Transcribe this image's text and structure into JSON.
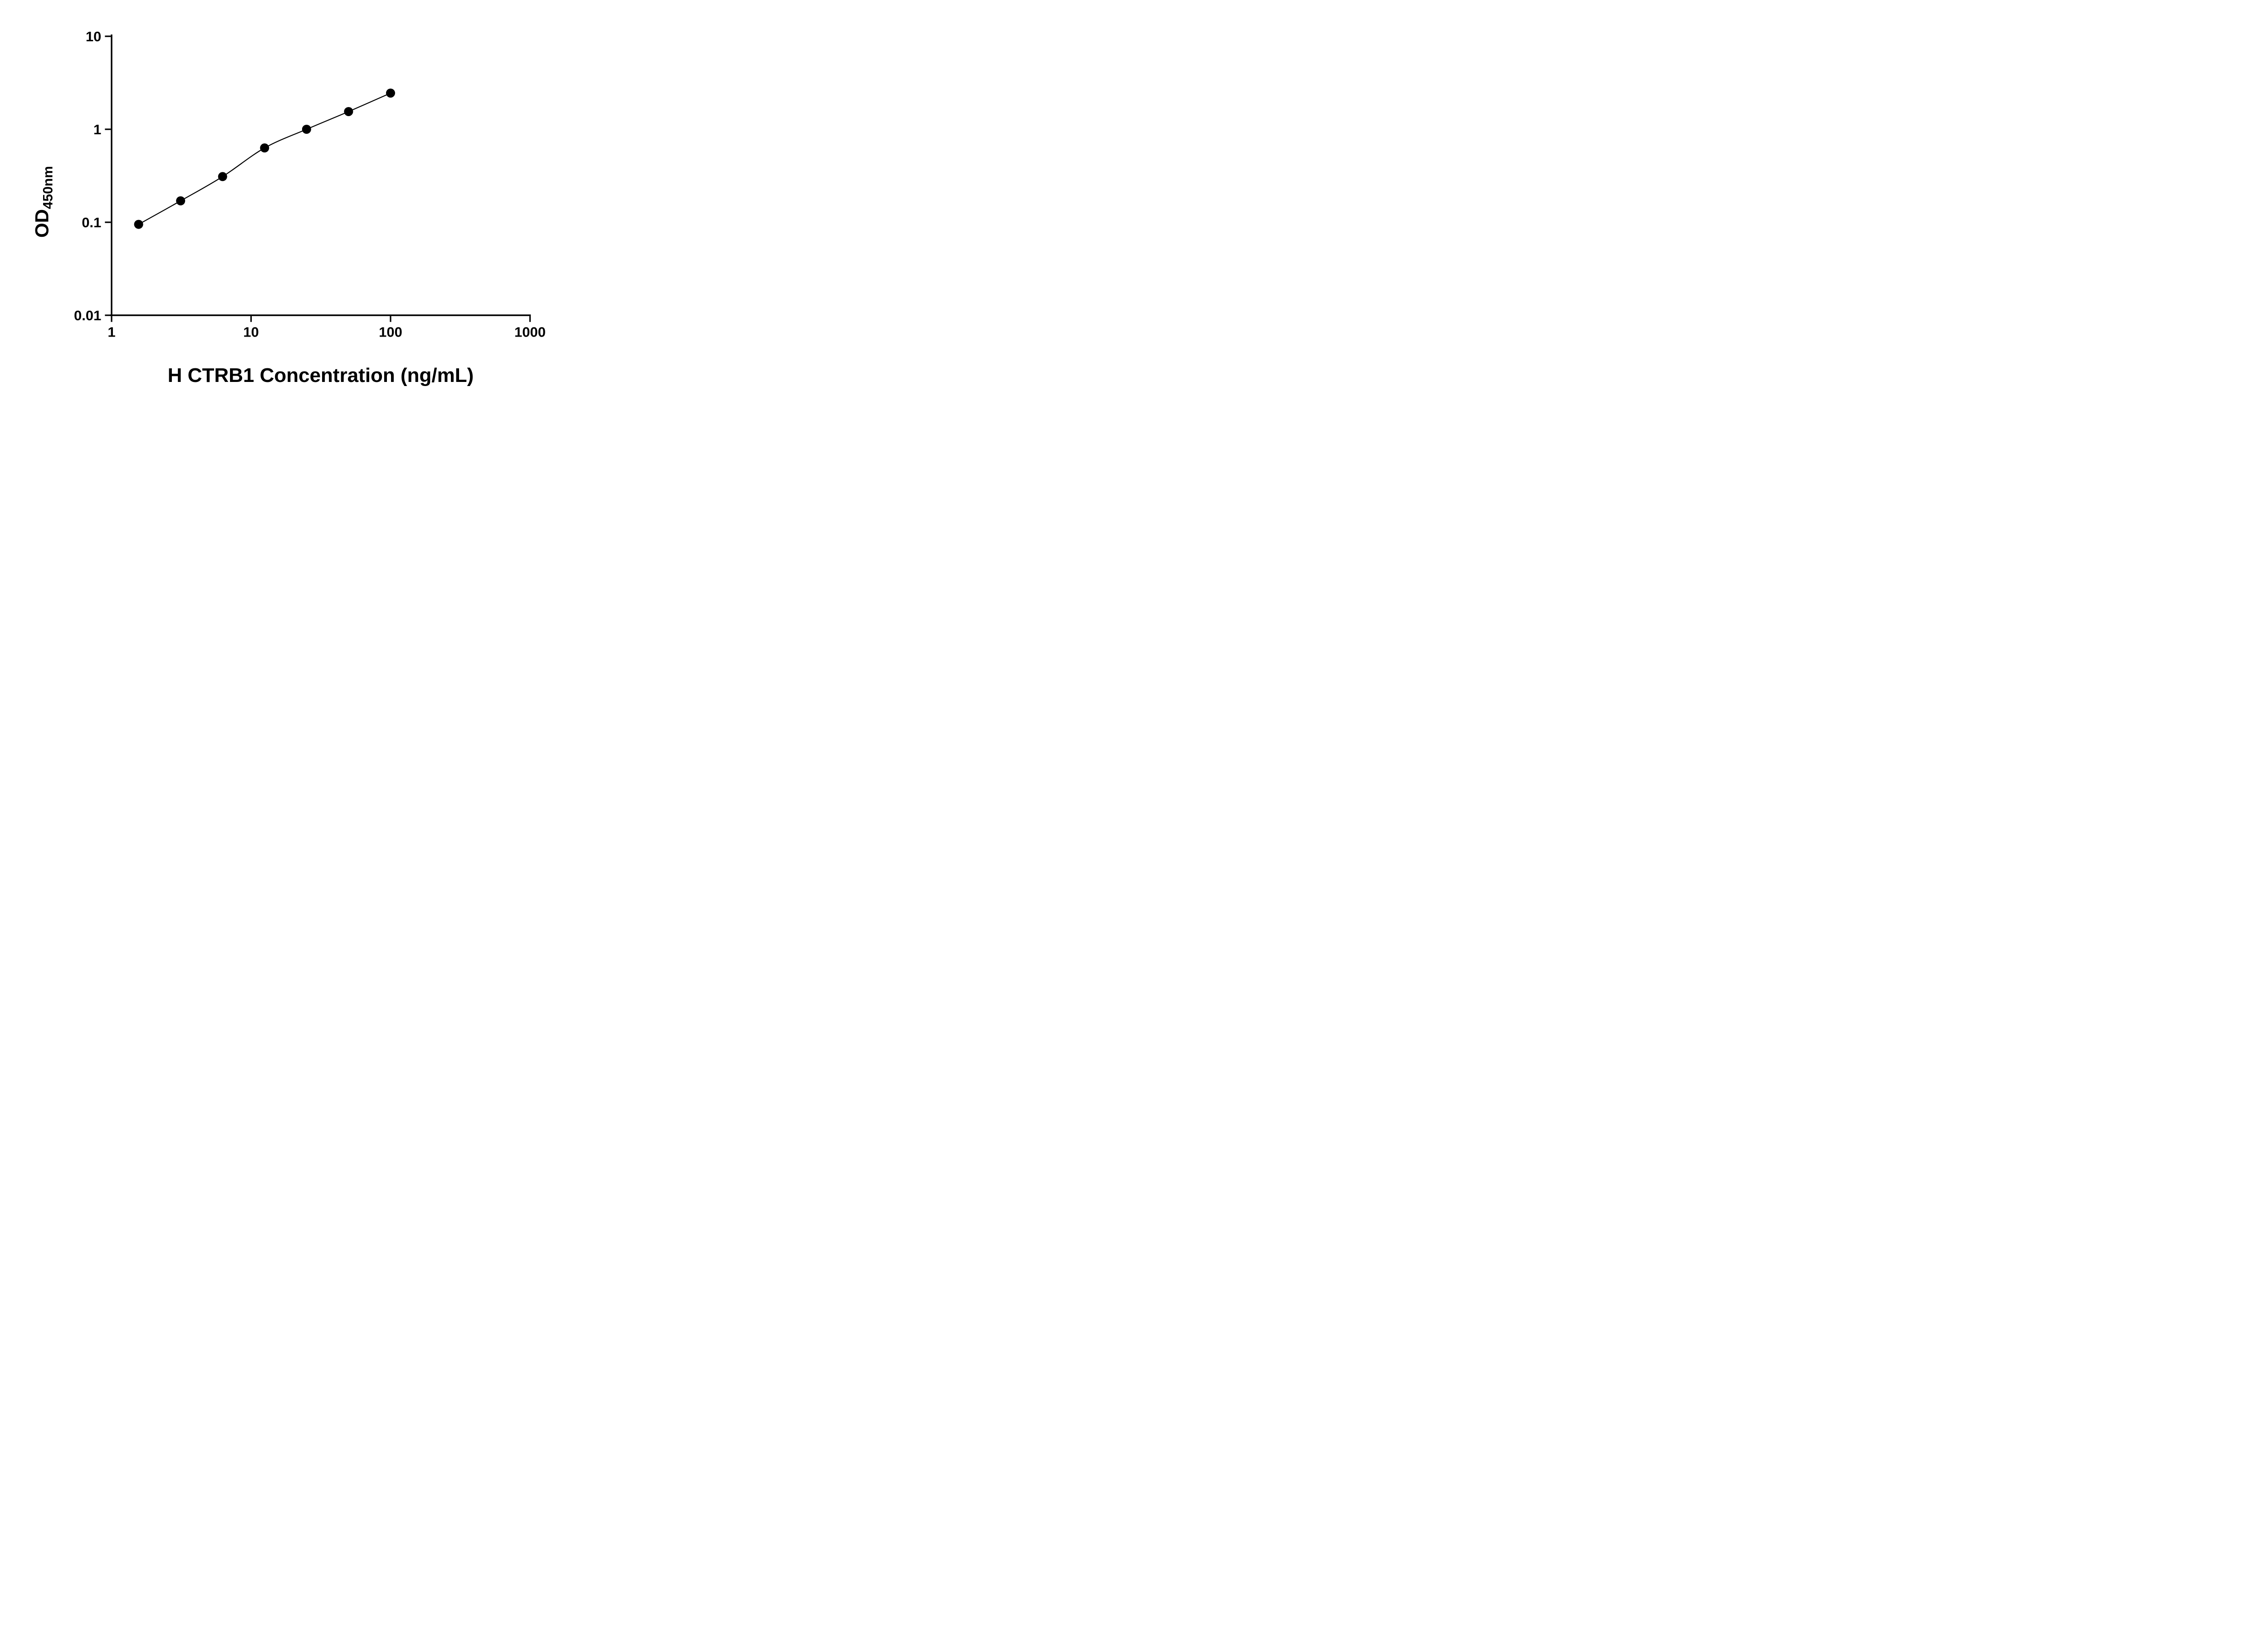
{
  "chart_data": {
    "type": "scatter",
    "title": "",
    "xlabel": "H CTRB1 Concentration (ng/mL)",
    "ylabel_main": "OD",
    "ylabel_sub": "450nm",
    "xscale": "log",
    "yscale": "log",
    "xlim": [
      1,
      1000
    ],
    "ylim": [
      0.01,
      10
    ],
    "x_ticks": [
      1,
      10,
      100,
      1000
    ],
    "x_tick_labels": [
      "1",
      "10",
      "100",
      "1000"
    ],
    "y_ticks": [
      10,
      1,
      0.1,
      0.01
    ],
    "y_tick_labels": [
      "10",
      "1",
      "0.1",
      "0.01"
    ],
    "x": [
      1.5625,
      3.125,
      6.25,
      12.5,
      25,
      50,
      100
    ],
    "y": [
      0.095,
      0.17,
      0.31,
      0.63,
      1.0,
      1.55,
      2.45
    ],
    "grid": false,
    "legend": "none",
    "marker_color": "#000000",
    "line_color": "#000000",
    "axis_color": "#000000",
    "background": "#ffffff",
    "curve": "smooth fit line through data points"
  }
}
